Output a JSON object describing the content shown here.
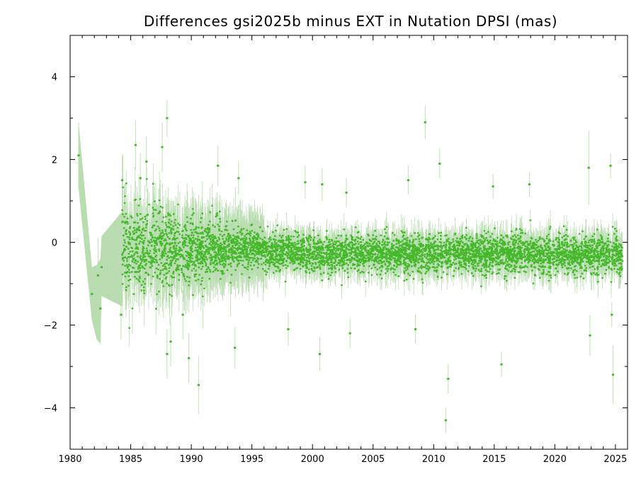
{
  "chart_data": {
    "type": "scatter",
    "title": "Differences gsi2025b minus EXT in Nutation DPSI (mas)",
    "xlabel": "",
    "ylabel": "",
    "xlim": [
      1980,
      2026
    ],
    "ylim": [
      -5,
      5
    ],
    "x_ticks": [
      1980,
      1985,
      1990,
      1995,
      2000,
      2005,
      2010,
      2015,
      2020,
      2025
    ],
    "x_tick_labels": [
      "1980",
      "1985",
      "1990",
      "1995",
      "2000",
      "2005",
      "2010",
      "2015",
      "2020",
      "2025"
    ],
    "y_ticks": [
      -4,
      -2,
      0,
      2,
      4
    ],
    "y_tick_labels": [
      "−4",
      "−2",
      "0",
      "2",
      "4"
    ],
    "grid": false,
    "legend": "none",
    "series": [
      {
        "name": "gsi2025b minus EXT DPSI",
        "color": "#44b82a",
        "error_color": "#b9ddb0",
        "points": [
          {
            "x": 1980.7,
            "y": 2.1,
            "err": 0.8
          },
          {
            "x": 1981.8,
            "y": -1.25,
            "err": 0.6
          },
          {
            "x": 1982.3,
            "y": -0.8,
            "err": 0.9
          },
          {
            "x": 1982.5,
            "y": -1.6,
            "err": 0.8
          },
          {
            "x": 1982.6,
            "y": -0.6,
            "err": 0.7
          },
          {
            "x": 1984.2,
            "y": -1.75,
            "err": 0.6
          },
          {
            "x": 1984.3,
            "y": 1.5,
            "err": 0.6
          },
          {
            "x": 1985.4,
            "y": 2.35,
            "err": 0.6
          },
          {
            "x": 1985.8,
            "y": 1.55,
            "err": 0.6
          },
          {
            "x": 1986.3,
            "y": 1.95,
            "err": 0.6
          },
          {
            "x": 1987.3,
            "y": 0.7,
            "err": 0.6
          },
          {
            "x": 1987.6,
            "y": 2.3,
            "err": 0.6
          },
          {
            "x": 1988.0,
            "y": 3.0,
            "err": 0.45
          },
          {
            "x": 1988.0,
            "y": -2.7,
            "err": 0.6
          },
          {
            "x": 1988.3,
            "y": -2.4,
            "err": 0.6
          },
          {
            "x": 1989.8,
            "y": -2.8,
            "err": 0.6
          },
          {
            "x": 1989.3,
            "y": -1.75,
            "err": 0.6
          },
          {
            "x": 1990.6,
            "y": -3.45,
            "err": 0.7
          },
          {
            "x": 1992.2,
            "y": 1.85,
            "err": 0.5
          },
          {
            "x": 1992.8,
            "y": 0.3,
            "err": 0.5
          },
          {
            "x": 1993.6,
            "y": -2.55,
            "err": 0.5
          },
          {
            "x": 1993.9,
            "y": 1.55,
            "err": 0.4
          },
          {
            "x": 1998.0,
            "y": -2.1,
            "err": 0.4
          },
          {
            "x": 1999.4,
            "y": 1.45,
            "err": 0.4
          },
          {
            "x": 2000.6,
            "y": -2.7,
            "err": 0.4
          },
          {
            "x": 2000.8,
            "y": 1.4,
            "err": 0.4
          },
          {
            "x": 2002.8,
            "y": 1.2,
            "err": 0.35
          },
          {
            "x": 2003.1,
            "y": -2.2,
            "err": 0.35
          },
          {
            "x": 2007.9,
            "y": 1.5,
            "err": 0.35
          },
          {
            "x": 2008.5,
            "y": -2.1,
            "err": 0.35
          },
          {
            "x": 2009.3,
            "y": 2.9,
            "err": 0.4
          },
          {
            "x": 2010.5,
            "y": 1.9,
            "err": 0.35
          },
          {
            "x": 2011.0,
            "y": -4.3,
            "err": 0.3
          },
          {
            "x": 2011.2,
            "y": -3.3,
            "err": 0.35
          },
          {
            "x": 2014.9,
            "y": 1.35,
            "err": 0.3
          },
          {
            "x": 2015.6,
            "y": -2.95,
            "err": 0.3
          },
          {
            "x": 2017.9,
            "y": 1.4,
            "err": 0.3
          },
          {
            "x": 2022.8,
            "y": 1.8,
            "err": 0.9
          },
          {
            "x": 2022.9,
            "y": -2.25,
            "err": 0.5
          },
          {
            "x": 2024.6,
            "y": 1.85,
            "err": 0.3
          },
          {
            "x": 2024.7,
            "y": -1.75,
            "err": 0.3
          },
          {
            "x": 2024.8,
            "y": -3.2,
            "err": 0.7
          }
        ]
      }
    ]
  }
}
